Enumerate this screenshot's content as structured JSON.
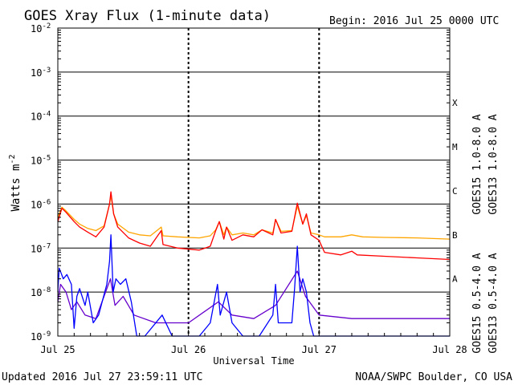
{
  "chart_data": {
    "type": "line",
    "title": "GOES Xray Flux (1-minute data)",
    "begin_label": "Begin:  2016 Jul 25 0000 UTC",
    "xlabel": "Universal Time",
    "ylabel": "Watts m",
    "ylabel_sup": "-2",
    "yscale": "log",
    "ylim": [
      1e-09,
      0.01
    ],
    "xlim": [
      "2016-07-25 00:00",
      "2016-07-28 00:00"
    ],
    "x_ticks": [
      "Jul 25",
      "Jul 26",
      "Jul 27",
      "Jul 28"
    ],
    "y_tick_labels": [
      {
        "base": "10",
        "exp": "-2",
        "value": 0.01
      },
      {
        "base": "10",
        "exp": "-3",
        "value": 0.001
      },
      {
        "base": "10",
        "exp": "-4",
        "value": 0.0001
      },
      {
        "base": "10",
        "exp": "-5",
        "value": 1e-05
      },
      {
        "base": "10",
        "exp": "-6",
        "value": 1e-06
      },
      {
        "base": "10",
        "exp": "-7",
        "value": 1e-07
      },
      {
        "base": "10",
        "exp": "-8",
        "value": 1e-08
      },
      {
        "base": "10",
        "exp": "-9",
        "value": 1e-09
      }
    ],
    "flare_classes": [
      {
        "label": "X",
        "value": 0.0002
      },
      {
        "label": "M",
        "value": 2e-05
      },
      {
        "label": "C",
        "value": 2e-06
      },
      {
        "label": "B",
        "value": 2e-07
      },
      {
        "label": "A",
        "value": 2e-08
      }
    ],
    "grid": true,
    "legend_placement": "right",
    "series": [
      {
        "name": "GOES15 1.0-8.0 A",
        "color": "#ff0000",
        "points": [
          [
            "2016-07-25 00:00",
            4e-07
          ],
          [
            "2016-07-25 00:45",
            8e-07
          ],
          [
            "2016-07-25 01:30",
            6.5e-07
          ],
          [
            "2016-07-25 03:00",
            4e-07
          ],
          [
            "2016-07-25 04:00",
            3e-07
          ],
          [
            "2016-07-25 05:30",
            2.3e-07
          ],
          [
            "2016-07-25 07:00",
            1.8e-07
          ],
          [
            "2016-07-25 08:30",
            3e-07
          ],
          [
            "2016-07-25 09:30",
            1e-06
          ],
          [
            "2016-07-25 09:45",
            1.9e-06
          ],
          [
            "2016-07-25 10:15",
            6e-07
          ],
          [
            "2016-07-25 11:00",
            3e-07
          ],
          [
            "2016-07-25 13:00",
            1.7e-07
          ],
          [
            "2016-07-25 15:00",
            1.3e-07
          ],
          [
            "2016-07-25 17:00",
            1.1e-07
          ],
          [
            "2016-07-25 19:00",
            2.5e-07
          ],
          [
            "2016-07-25 19:20",
            1.2e-07
          ],
          [
            "2016-07-25 22:00",
            1e-07
          ],
          [
            "2016-07-26 02:00",
            9e-08
          ],
          [
            "2016-07-26 04:00",
            1.1e-07
          ],
          [
            "2016-07-26 05:00",
            2.5e-07
          ],
          [
            "2016-07-26 05:40",
            4e-07
          ],
          [
            "2016-07-26 06:30",
            1.6e-07
          ],
          [
            "2016-07-26 07:00",
            3e-07
          ],
          [
            "2016-07-26 08:00",
            1.5e-07
          ],
          [
            "2016-07-26 10:00",
            2e-07
          ],
          [
            "2016-07-26 12:00",
            1.8e-07
          ],
          [
            "2016-07-26 13:30",
            2.6e-07
          ],
          [
            "2016-07-26 15:30",
            2e-07
          ],
          [
            "2016-07-26 16:00",
            4.5e-07
          ],
          [
            "2016-07-26 17:00",
            2.2e-07
          ],
          [
            "2016-07-26 19:00",
            2.4e-07
          ],
          [
            "2016-07-26 20:00",
            1.05e-06
          ],
          [
            "2016-07-26 21:00",
            3.5e-07
          ],
          [
            "2016-07-26 21:40",
            6e-07
          ],
          [
            "2016-07-26 22:30",
            2e-07
          ],
          [
            "2016-07-27 00:00",
            1.5e-07
          ],
          [
            "2016-07-27 01:00",
            8e-08
          ],
          [
            "2016-07-27 04:00",
            7e-08
          ],
          [
            "2016-07-27 06:00",
            8.5e-08
          ],
          [
            "2016-07-27 07:00",
            7e-08
          ],
          [
            "2016-07-27 12:00",
            6.5e-08
          ],
          [
            "2016-07-27 18:00",
            6e-08
          ],
          [
            "2016-07-28 00:00",
            5.5e-08
          ]
        ]
      },
      {
        "name": "GOES13 1.0-8.0 A",
        "color": "#ffa500",
        "points": [
          [
            "2016-07-25 00:00",
            5e-07
          ],
          [
            "2016-07-25 00:45",
            8.5e-07
          ],
          [
            "2016-07-25 01:30",
            7e-07
          ],
          [
            "2016-07-25 03:00",
            4.5e-07
          ],
          [
            "2016-07-25 04:00",
            3.5e-07
          ],
          [
            "2016-07-25 05:30",
            2.8e-07
          ],
          [
            "2016-07-25 07:00",
            2.5e-07
          ],
          [
            "2016-07-25 08:30",
            3.2e-07
          ],
          [
            "2016-07-25 09:30",
            1e-06
          ],
          [
            "2016-07-25 09:45",
            1.6e-06
          ],
          [
            "2016-07-25 10:15",
            6e-07
          ],
          [
            "2016-07-25 11:00",
            3.5e-07
          ],
          [
            "2016-07-25 13:00",
            2.3e-07
          ],
          [
            "2016-07-25 15:00",
            2e-07
          ],
          [
            "2016-07-25 17:00",
            1.9e-07
          ],
          [
            "2016-07-25 19:00",
            3e-07
          ],
          [
            "2016-07-25 19:20",
            1.9e-07
          ],
          [
            "2016-07-25 22:00",
            1.8e-07
          ],
          [
            "2016-07-26 02:00",
            1.7e-07
          ],
          [
            "2016-07-26 04:00",
            1.9e-07
          ],
          [
            "2016-07-26 05:00",
            2.6e-07
          ],
          [
            "2016-07-26 05:40",
            4e-07
          ],
          [
            "2016-07-26 06:30",
            2e-07
          ],
          [
            "2016-07-26 07:00",
            3e-07
          ],
          [
            "2016-07-26 08:00",
            2e-07
          ],
          [
            "2016-07-26 10:00",
            2.2e-07
          ],
          [
            "2016-07-26 12:00",
            2e-07
          ],
          [
            "2016-07-26 13:30",
            2.6e-07
          ],
          [
            "2016-07-26 15:30",
            2.2e-07
          ],
          [
            "2016-07-26 16:00",
            4.5e-07
          ],
          [
            "2016-07-26 17:00",
            2.4e-07
          ],
          [
            "2016-07-26 19:00",
            2.5e-07
          ],
          [
            "2016-07-26 20:00",
            9e-07
          ],
          [
            "2016-07-26 21:00",
            3.5e-07
          ],
          [
            "2016-07-26 21:40",
            5.5e-07
          ],
          [
            "2016-07-26 22:30",
            2.2e-07
          ],
          [
            "2016-07-27 00:00",
            2e-07
          ],
          [
            "2016-07-27 01:00",
            1.8e-07
          ],
          [
            "2016-07-27 04:00",
            1.8e-07
          ],
          [
            "2016-07-27 06:00",
            2e-07
          ],
          [
            "2016-07-27 08:00",
            1.8e-07
          ],
          [
            "2016-07-27 12:00",
            1.75e-07
          ],
          [
            "2016-07-27 18:00",
            1.7e-07
          ],
          [
            "2016-07-28 00:00",
            1.6e-07
          ]
        ]
      },
      {
        "name": "GOES15 0.5-4.0 A",
        "color": "#0000ff",
        "points": [
          [
            "2016-07-25 00:00",
            1e-08
          ],
          [
            "2016-07-25 00:15",
            3.5e-08
          ],
          [
            "2016-07-25 01:00",
            2e-08
          ],
          [
            "2016-07-25 01:40",
            2.5e-08
          ],
          [
            "2016-07-25 02:30",
            1.5e-08
          ],
          [
            "2016-07-25 03:00",
            1.5e-09
          ],
          [
            "2016-07-25 03:30",
            8e-09
          ],
          [
            "2016-07-25 04:00",
            1.2e-08
          ],
          [
            "2016-07-25 05:00",
            5e-09
          ],
          [
            "2016-07-25 05:30",
            1e-08
          ],
          [
            "2016-07-25 06:30",
            2e-09
          ],
          [
            "2016-07-25 07:30",
            3e-09
          ],
          [
            "2016-07-25 09:00",
            1.5e-08
          ],
          [
            "2016-07-25 09:30",
            5e-08
          ],
          [
            "2016-07-25 09:45",
            2e-07
          ],
          [
            "2016-07-25 10:10",
            1e-08
          ],
          [
            "2016-07-25 10:40",
            2e-08
          ],
          [
            "2016-07-25 11:30",
            1.5e-08
          ],
          [
            "2016-07-25 12:30",
            2e-08
          ],
          [
            "2016-07-25 13:30",
            6e-09
          ],
          [
            "2016-07-25 14:30",
            1e-09
          ],
          [
            "2016-07-25 16:00",
            1e-09
          ],
          [
            "2016-07-25 19:10",
            3e-09
          ],
          [
            "2016-07-25 21:00",
            1e-09
          ],
          [
            "2016-07-26 02:00",
            1e-09
          ],
          [
            "2016-07-26 04:00",
            2e-09
          ],
          [
            "2016-07-26 05:20",
            1.5e-08
          ],
          [
            "2016-07-26 05:50",
            3e-09
          ],
          [
            "2016-07-26 07:00",
            1e-08
          ],
          [
            "2016-07-26 08:00",
            2e-09
          ],
          [
            "2016-07-26 10:00",
            1e-09
          ],
          [
            "2016-07-26 13:00",
            1e-09
          ],
          [
            "2016-07-26 15:30",
            3e-09
          ],
          [
            "2016-07-26 16:00",
            1.5e-08
          ],
          [
            "2016-07-26 16:30",
            2e-09
          ],
          [
            "2016-07-26 19:00",
            2e-09
          ],
          [
            "2016-07-26 19:30",
            1.2e-08
          ],
          [
            "2016-07-26 20:00",
            1.1e-07
          ],
          [
            "2016-07-26 20:30",
            1e-08
          ],
          [
            "2016-07-26 21:00",
            2e-08
          ],
          [
            "2016-07-26 21:40",
            1e-08
          ],
          [
            "2016-07-26 22:20",
            2e-09
          ],
          [
            "2016-07-26 23:00",
            1e-09
          ],
          [
            "2016-07-28 00:00",
            1e-09
          ]
        ]
      },
      {
        "name": "GOES13 0.5-4.0 A",
        "color": "#6600cc",
        "points": [
          [
            "2016-07-25 00:00",
            6e-09
          ],
          [
            "2016-07-25 00:30",
            1.5e-08
          ],
          [
            "2016-07-25 01:30",
            1e-08
          ],
          [
            "2016-07-25 02:30",
            4e-09
          ],
          [
            "2016-07-25 03:30",
            6e-09
          ],
          [
            "2016-07-25 05:00",
            3e-09
          ],
          [
            "2016-07-25 07:00",
            2.5e-09
          ],
          [
            "2016-07-25 09:40",
            2e-08
          ],
          [
            "2016-07-25 10:30",
            5e-09
          ],
          [
            "2016-07-25 12:00",
            8e-09
          ],
          [
            "2016-07-25 14:00",
            3e-09
          ],
          [
            "2016-07-25 18:00",
            2e-09
          ],
          [
            "2016-07-26 00:00",
            2e-09
          ],
          [
            "2016-07-26 05:30",
            6e-09
          ],
          [
            "2016-07-26 08:00",
            3e-09
          ],
          [
            "2016-07-26 12:00",
            2.5e-09
          ],
          [
            "2016-07-26 16:00",
            5e-09
          ],
          [
            "2016-07-26 20:00",
            3e-08
          ],
          [
            "2016-07-26 21:30",
            8e-09
          ],
          [
            "2016-07-27 00:00",
            3e-09
          ],
          [
            "2016-07-27 06:00",
            2.5e-09
          ],
          [
            "2016-07-27 12:00",
            2.5e-09
          ],
          [
            "2016-07-27 18:00",
            2.5e-09
          ],
          [
            "2016-07-28 00:00",
            2.5e-09
          ]
        ]
      }
    ]
  },
  "footer": {
    "updated": "Updated 2016 Jul 27 23:59:11 UTC",
    "source": "NOAA/SWPC Boulder, CO USA"
  }
}
